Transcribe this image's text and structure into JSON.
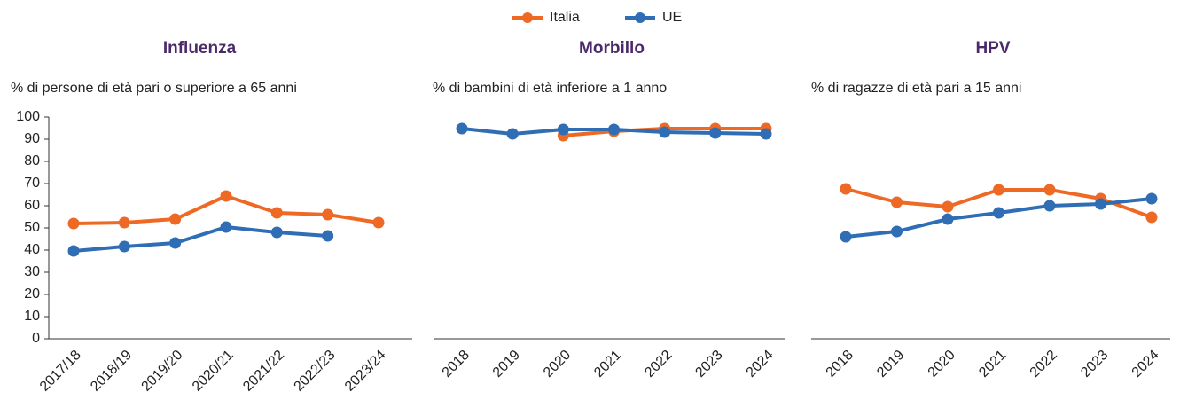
{
  "chart_data": [
    {
      "type": "line",
      "title": "Influenza",
      "subtitle": "% di persone di età pari o superiore a 65 anni",
      "categories": [
        "2017/18",
        "2018/19",
        "2019/20",
        "2020/21",
        "2021/22",
        "2022/23",
        "2023/24"
      ],
      "series": [
        {
          "name": "Italia",
          "color": "#ee6a24",
          "values": [
            52,
            52.4,
            54,
            64.4,
            56.8,
            56,
            52.4
          ]
        },
        {
          "name": "UE",
          "color": "#2f6db5",
          "values": [
            39.6,
            41.6,
            43.2,
            50.4,
            48,
            46.4,
            null
          ]
        }
      ],
      "ylim": [
        0,
        100
      ],
      "yticks": [
        0,
        10,
        20,
        30,
        40,
        50,
        60,
        70,
        80,
        90,
        100
      ]
    },
    {
      "type": "line",
      "title": "Morbillo",
      "subtitle": "% di bambini di età inferiore a 1 anno",
      "categories": [
        "2018",
        "2019",
        "2020",
        "2021",
        "2022",
        "2023",
        "2024"
      ],
      "series": [
        {
          "name": "Italia",
          "color": "#ee6a24",
          "values": [
            null,
            null,
            91.6,
            93.6,
            94.8,
            94.8,
            94.8
          ]
        },
        {
          "name": "UE",
          "color": "#2f6db5",
          "values": [
            94.8,
            92.4,
            94.4,
            94.4,
            93.2,
            92.8,
            92.4
          ]
        }
      ],
      "ylim": [
        0,
        100
      ]
    },
    {
      "type": "line",
      "title": "HPV",
      "subtitle": "% di ragazze di età pari a 15 anni",
      "categories": [
        "2018",
        "2019",
        "2020",
        "2021",
        "2022",
        "2023",
        "2024"
      ],
      "series": [
        {
          "name": "Italia",
          "color": "#ee6a24",
          "values": [
            67.6,
            61.6,
            59.6,
            67.2,
            67.2,
            63.2,
            54.8
          ]
        },
        {
          "name": "UE",
          "color": "#2f6db5",
          "values": [
            46,
            48.4,
            54,
            56.8,
            60,
            60.8,
            63.2
          ]
        }
      ],
      "ylim": [
        0,
        100
      ]
    }
  ]
}
